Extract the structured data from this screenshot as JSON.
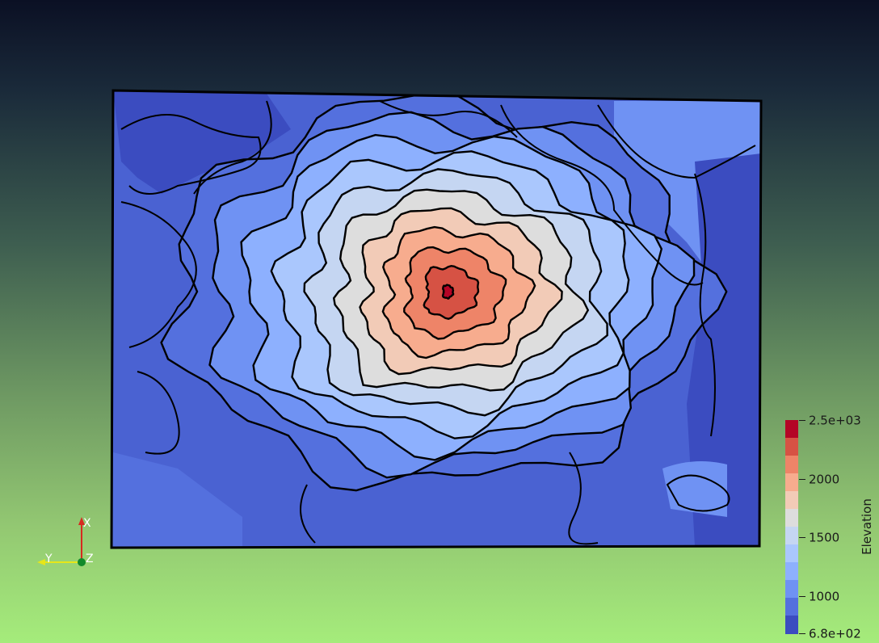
{
  "colors": {
    "background_top": "#0b1024",
    "background_bottom": "#a5ec7b",
    "contour_line": "#000000",
    "x_axis": "#d62a1f",
    "y_axis": "#e6e619",
    "z_axis": "#118a2a"
  },
  "colormap": [
    "#3b4cc0",
    "#5470de",
    "#6f92f3",
    "#8db0fe",
    "#aac7fd",
    "#c5d6f2",
    "#dddddd",
    "#f2cbb7",
    "#f7ac8e",
    "#ee8468",
    "#d65244",
    "#b40426"
  ],
  "colorbar": {
    "title": "Elevation",
    "min": 680,
    "max": 2500,
    "tick_labels": [
      {
        "text": "2.5e+03",
        "value": 2500
      },
      {
        "text": "2000",
        "value": 2000
      },
      {
        "text": "1500",
        "value": 1500
      },
      {
        "text": "1000",
        "value": 1000
      },
      {
        "text": "6.8e+02",
        "value": 680
      }
    ]
  },
  "axes_widget": {
    "x_label": "X",
    "y_label": "Y",
    "z_label": "Z"
  },
  "map": {
    "peak_center": [
      0.49,
      0.44
    ],
    "rings": 12
  }
}
